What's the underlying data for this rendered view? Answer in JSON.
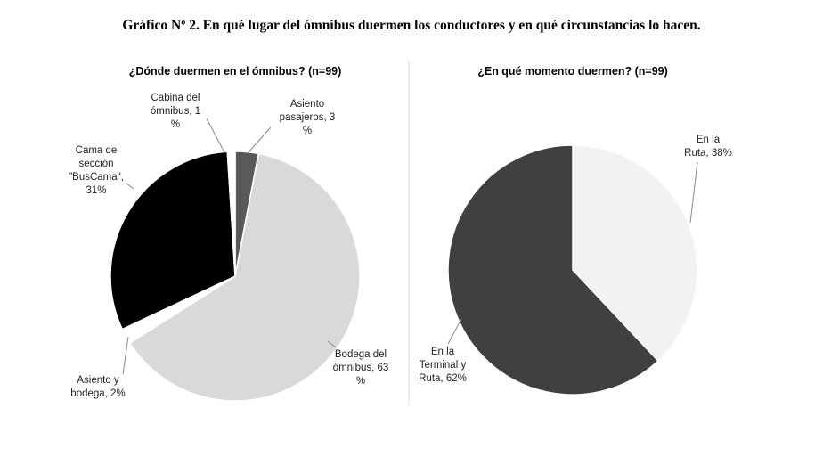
{
  "title": "Gráfico Nº 2. En qué lugar del ómnibus duermen los conductores y en qué circunstancias lo hacen.",
  "chart_data": [
    {
      "type": "pie",
      "title": "¿Dónde duermen en el ómnibus? (n=99)",
      "slices": [
        {
          "name": "Asiento pasajeros",
          "value": 3,
          "color": "#595959",
          "label_lines": [
            "Asiento",
            "pasajeros, 3",
            "%"
          ]
        },
        {
          "name": "Bodega del ómnibus",
          "value": 63,
          "color": "#d9d9d9",
          "label_lines": [
            "Bodega del",
            "ómnibus, 63",
            "%"
          ]
        },
        {
          "name": "Asiento y bodega",
          "value": 2,
          "color": "#ffffff",
          "label_lines": [
            "Asiento y",
            "bodega, 2%"
          ]
        },
        {
          "name": "Cama de sección \"BusCama\"",
          "value": 31,
          "color": "#000000",
          "label_lines": [
            "Cama de",
            "sección",
            "\"BusCama\",",
            "31%"
          ]
        },
        {
          "name": "Cabina del ómnibus",
          "value": 1,
          "color": "#ffffff",
          "label_lines": [
            "Cabina del",
            "ómnibus, 1",
            "%"
          ]
        }
      ]
    },
    {
      "type": "pie",
      "title": "¿En qué momento duermen? (n=99)",
      "slices": [
        {
          "name": "En la Ruta",
          "value": 38,
          "color": "#f2f2f2",
          "label_lines": [
            "En la",
            "Ruta, 38%"
          ]
        },
        {
          "name": "En la Terminal y Ruta",
          "value": 62,
          "color": "#404040",
          "label_lines": [
            "En la",
            "Terminal y",
            "Ruta, 62%"
          ]
        }
      ]
    }
  ]
}
